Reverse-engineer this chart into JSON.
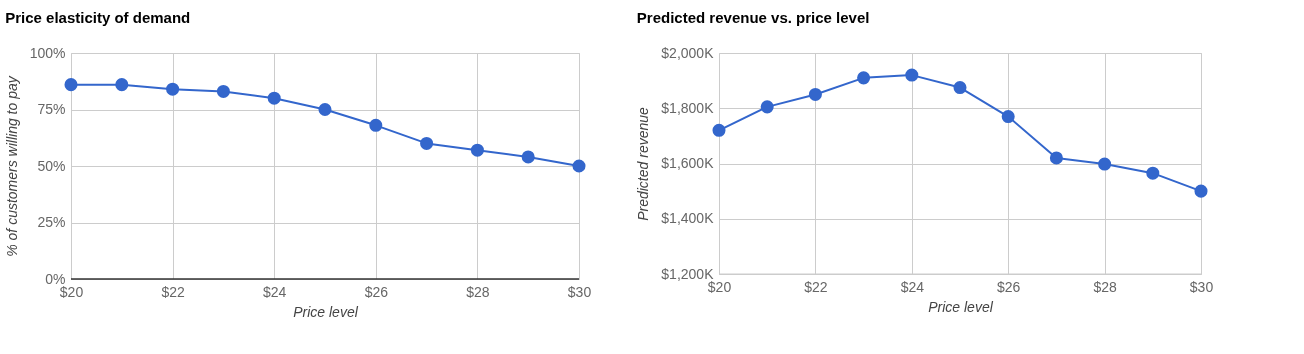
{
  "chart_data": [
    {
      "type": "line",
      "title": "Price elasticity of demand",
      "xlabel": "Price level",
      "ylabel": "% of customers willing to pay",
      "x": [
        20,
        21,
        22,
        23,
        24,
        25,
        26,
        27,
        28,
        29,
        30
      ],
      "series": [
        {
          "color": "#3366cc",
          "values": [
            86,
            86,
            84,
            83,
            80,
            75,
            68,
            60,
            57,
            54,
            50
          ]
        }
      ],
      "xlim": [
        20,
        30
      ],
      "xticks": [
        {
          "value": 20,
          "label": "$20"
        },
        {
          "value": 22,
          "label": "$22"
        },
        {
          "value": 24,
          "label": "$24"
        },
        {
          "value": 26,
          "label": "$26"
        },
        {
          "value": 28,
          "label": "$28"
        },
        {
          "value": 30,
          "label": "$30"
        }
      ],
      "ylim": [
        0,
        100
      ],
      "yticks": [
        {
          "value": 0,
          "label": "0%"
        },
        {
          "value": 25,
          "label": "25%"
        },
        {
          "value": 50,
          "label": "50%"
        },
        {
          "value": 75,
          "label": "75%"
        },
        {
          "value": 100,
          "label": "100%"
        }
      ],
      "grid": true,
      "marker": "circle",
      "line_style": "solid"
    },
    {
      "type": "line",
      "title": "Predicted revenue vs. price level",
      "xlabel": "Price level",
      "ylabel": "Predicted revenue",
      "x": [
        20,
        21,
        22,
        23,
        24,
        25,
        26,
        27,
        28,
        29,
        30
      ],
      "series": [
        {
          "color": "#3366cc",
          "values": [
            1720,
            1805,
            1850,
            1910,
            1920,
            1875,
            1770,
            1620,
            1598,
            1565,
            1500
          ]
        }
      ],
      "xlim": [
        20,
        30
      ],
      "xticks": [
        {
          "value": 20,
          "label": "$20"
        },
        {
          "value": 22,
          "label": "$22"
        },
        {
          "value": 24,
          "label": "$24"
        },
        {
          "value": 26,
          "label": "$26"
        },
        {
          "value": 28,
          "label": "$28"
        },
        {
          "value": 30,
          "label": "$30"
        }
      ],
      "ylim": [
        1200,
        2000
      ],
      "yticks": [
        {
          "value": 1200,
          "label": "$1,200K"
        },
        {
          "value": 1400,
          "label": "$1,400K"
        },
        {
          "value": 1600,
          "label": "$1,600K"
        },
        {
          "value": 1800,
          "label": "$1,800K"
        },
        {
          "value": 2000,
          "label": "$2,000K"
        }
      ],
      "grid": true,
      "marker": "circle",
      "line_style": "solid"
    }
  ]
}
